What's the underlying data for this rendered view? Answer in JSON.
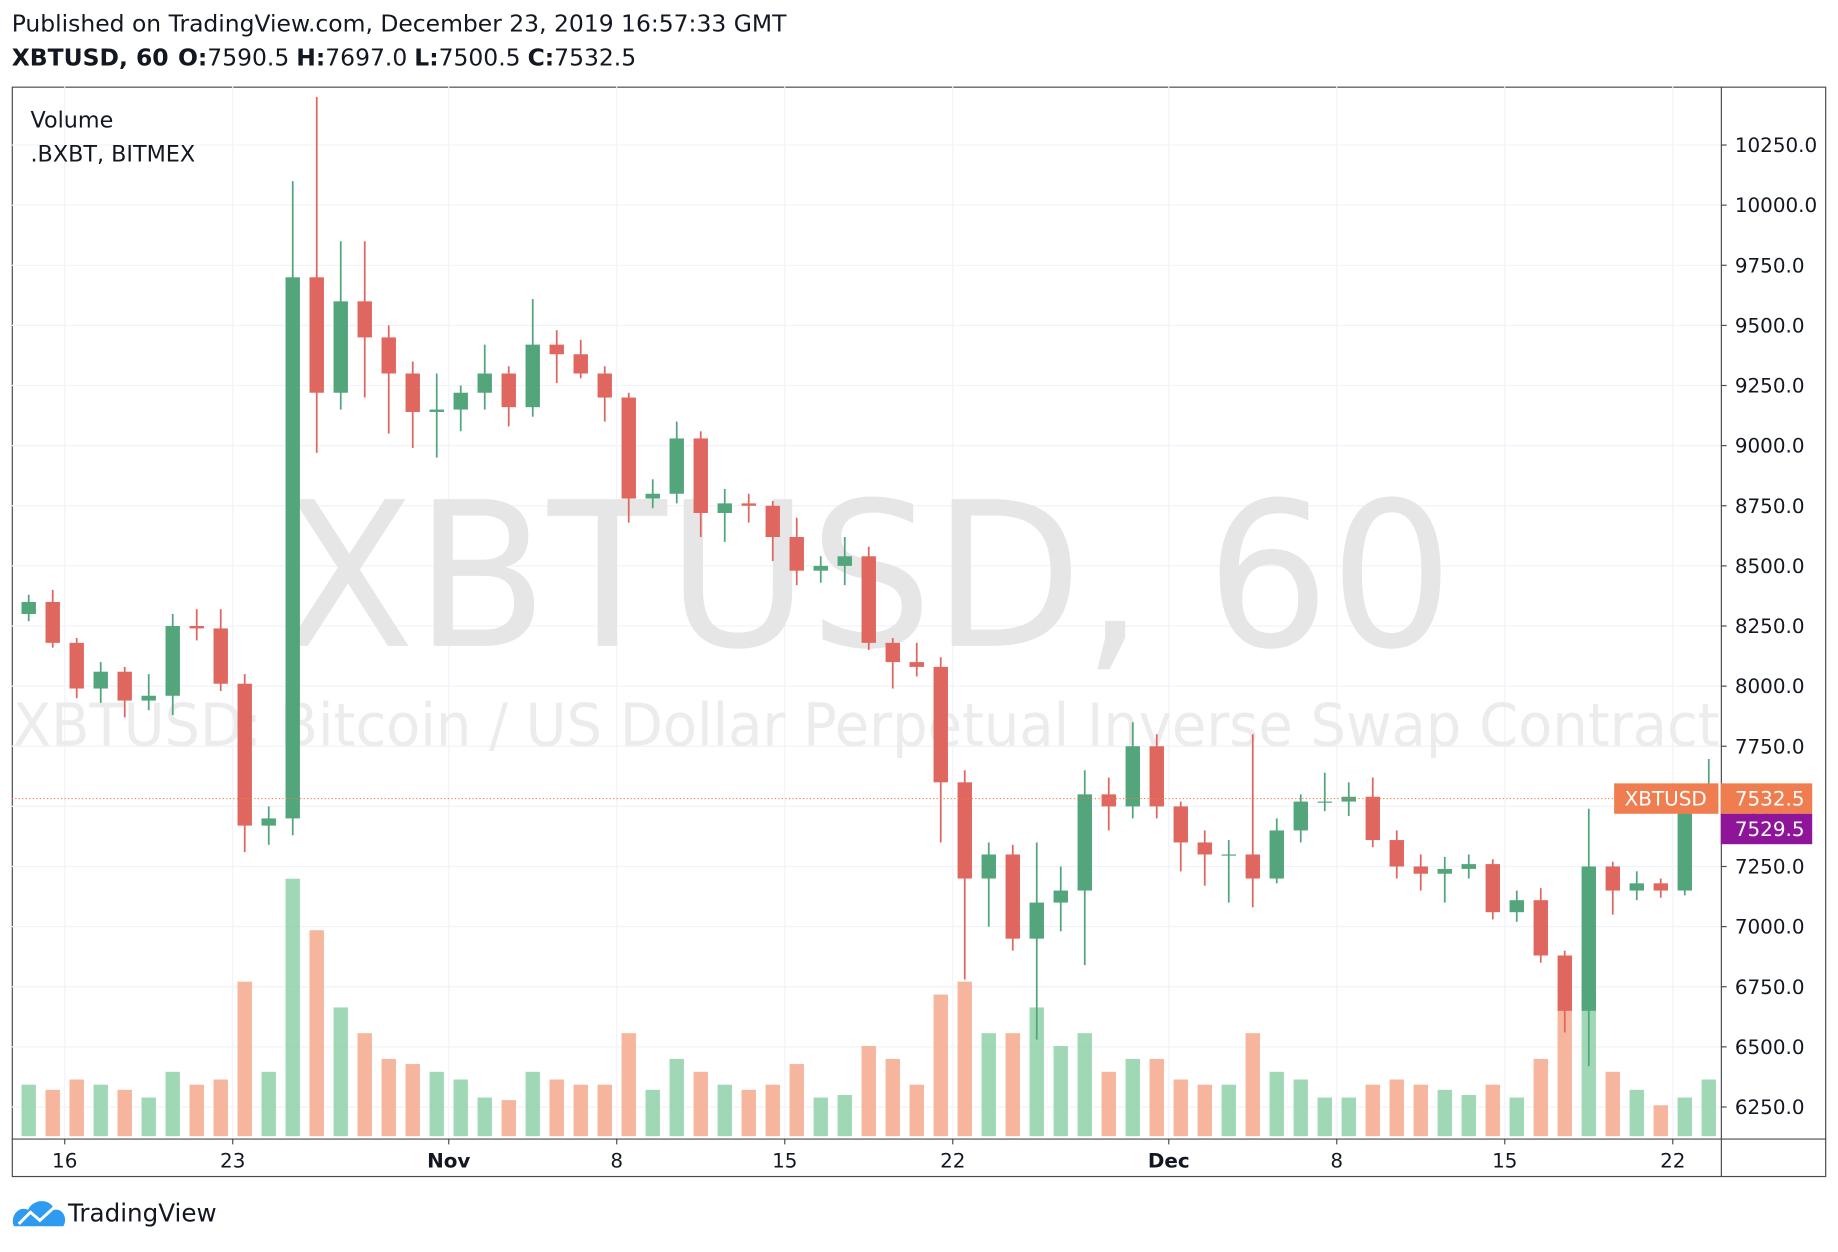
{
  "header": {
    "published": "Published on TradingView.com, December 23, 2019 16:57:33 GMT",
    "symbol": "XBTUSD, 60",
    "ohlc": [
      {
        "key": "O:",
        "value": "7590.5"
      },
      {
        "key": "H:",
        "value": "7697.0"
      },
      {
        "key": "L:",
        "value": "7500.5"
      },
      {
        "key": "C:",
        "value": "7532.5"
      }
    ]
  },
  "chart_data": {
    "type": "candlestick",
    "watermark": "XBTUSD, 60",
    "watermark_subtitle": "XBTUSD: Bitcoin / US Dollar Perpetual Inverse Swap Contract",
    "indicators": [
      "Volume",
      ".BXBT, BITMEX"
    ],
    "x": [
      "2019-10-14",
      "2019-10-15",
      "2019-10-16",
      "2019-10-17",
      "2019-10-18",
      "2019-10-19",
      "2019-10-20",
      "2019-10-21",
      "2019-10-22",
      "2019-10-23",
      "2019-10-24",
      "2019-10-25",
      "2019-10-26",
      "2019-10-27",
      "2019-10-28",
      "2019-10-29",
      "2019-10-30",
      "2019-10-31",
      "2019-11-01",
      "2019-11-02",
      "2019-11-03",
      "2019-11-04",
      "2019-11-05",
      "2019-11-06",
      "2019-11-07",
      "2019-11-08",
      "2019-11-09",
      "2019-11-10",
      "2019-11-11",
      "2019-11-12",
      "2019-11-13",
      "2019-11-14",
      "2019-11-15",
      "2019-11-16",
      "2019-11-17",
      "2019-11-18",
      "2019-11-19",
      "2019-11-20",
      "2019-11-21",
      "2019-11-22",
      "2019-11-23",
      "2019-11-24",
      "2019-11-25",
      "2019-11-26",
      "2019-11-27",
      "2019-11-28",
      "2019-11-29",
      "2019-11-30",
      "2019-12-01",
      "2019-12-02",
      "2019-12-03",
      "2019-12-04",
      "2019-12-05",
      "2019-12-06",
      "2019-12-07",
      "2019-12-08",
      "2019-12-09",
      "2019-12-10",
      "2019-12-11",
      "2019-12-12",
      "2019-12-13",
      "2019-12-14",
      "2019-12-15",
      "2019-12-16",
      "2019-12-17",
      "2019-12-18",
      "2019-12-19",
      "2019-12-20",
      "2019-12-21",
      "2019-12-22",
      "2019-12-23"
    ],
    "open": [
      8300,
      8350,
      8180,
      7990,
      8060,
      7940,
      7960,
      8250,
      8240,
      8010,
      7420,
      7450,
      9700,
      9220,
      9600,
      9450,
      9300,
      9140,
      9150,
      9220,
      9300,
      9160,
      9420,
      9380,
      9300,
      9200,
      8780,
      8800,
      9030,
      8720,
      8760,
      8750,
      8620,
      8480,
      8500,
      8540,
      8180,
      8100,
      8080,
      7600,
      7200,
      7300,
      6950,
      7100,
      7150,
      7550,
      7500,
      7750,
      7500,
      7350,
      7300,
      7300,
      7200,
      7400,
      7520,
      7520,
      7540,
      7360,
      7250,
      7220,
      7240,
      7260,
      7060,
      7110,
      6880,
      6650,
      7250,
      7150,
      7180,
      7150,
      7500
    ],
    "high": [
      8380,
      8400,
      8200,
      8100,
      8080,
      8050,
      8300,
      8320,
      8320,
      8050,
      7500,
      10100,
      10450,
      9850,
      9850,
      9500,
      9350,
      9300,
      9250,
      9420,
      9330,
      9610,
      9480,
      9440,
      9330,
      9220,
      8860,
      9100,
      9060,
      8820,
      8800,
      8770,
      8700,
      8540,
      8620,
      8580,
      8200,
      8180,
      8120,
      7650,
      7350,
      7340,
      7350,
      7250,
      7650,
      7620,
      7850,
      7800,
      7520,
      7400,
      7360,
      7800,
      7450,
      7550,
      7640,
      7600,
      7620,
      7400,
      7300,
      7290,
      7300,
      7280,
      7150,
      7160,
      6900,
      7490,
      7270,
      7230,
      7200,
      7520,
      7697
    ],
    "low": [
      8270,
      8160,
      7950,
      7930,
      7870,
      7900,
      7880,
      8190,
      7980,
      7310,
      7340,
      7380,
      8970,
      9150,
      9200,
      9050,
      8990,
      8950,
      9060,
      9150,
      9080,
      9120,
      9260,
      9280,
      9100,
      8680,
      8740,
      8760,
      8620,
      8600,
      8680,
      8520,
      8420,
      8430,
      8420,
      8150,
      7990,
      8040,
      7350,
      6780,
      7000,
      6900,
      6530,
      6980,
      6840,
      7400,
      7450,
      7450,
      7230,
      7170,
      7100,
      7080,
      7180,
      7350,
      7480,
      7460,
      7330,
      7200,
      7150,
      7100,
      7200,
      7030,
      7020,
      6850,
      6560,
      6420,
      7050,
      7110,
      7120,
      7130,
      7470
    ],
    "close": [
      8350,
      8180,
      7990,
      8060,
      7940,
      7960,
      8250,
      8240,
      8010,
      7420,
      7450,
      9700,
      9220,
      9600,
      9450,
      9300,
      9140,
      9150,
      9220,
      9300,
      9160,
      9420,
      9380,
      9300,
      9200,
      8780,
      8800,
      9030,
      8720,
      8760,
      8750,
      8620,
      8480,
      8500,
      8540,
      8180,
      8100,
      8080,
      7600,
      7200,
      7300,
      6950,
      7100,
      7150,
      7550,
      7500,
      7750,
      7500,
      7350,
      7300,
      7300,
      7200,
      7400,
      7520,
      7520,
      7540,
      7360,
      7250,
      7220,
      7240,
      7260,
      7060,
      7110,
      6880,
      6650,
      7250,
      7150,
      7180,
      7150,
      7500,
      7532.5
    ],
    "volume": [
      20,
      18,
      22,
      20,
      18,
      15,
      25,
      20,
      22,
      60,
      25,
      100,
      80,
      50,
      40,
      30,
      28,
      25,
      22,
      15,
      14,
      25,
      22,
      20,
      20,
      40,
      18,
      30,
      25,
      20,
      18,
      20,
      28,
      15,
      16,
      35,
      30,
      20,
      55,
      60,
      40,
      40,
      50,
      35,
      40,
      25,
      30,
      30,
      22,
      20,
      20,
      40,
      25,
      22,
      15,
      15,
      20,
      22,
      20,
      18,
      16,
      20,
      15,
      30,
      50,
      55,
      25,
      18,
      12,
      15,
      22
    ],
    "up_color": "#53a57c",
    "down_color": "#e0675f",
    "volume_up_color": "#8fd0a8",
    "volume_down_color": "#f5a88c",
    "xlim": [
      "2019-10-13T19:00Z",
      "2019-12-24T00:00Z"
    ],
    "xticks": [
      {
        "value": "2019-10-16",
        "label": "16"
      },
      {
        "value": "2019-10-23",
        "label": "23"
      },
      {
        "value": "2019-11-01",
        "label": "Nov"
      },
      {
        "value": "2019-11-08",
        "label": "8"
      },
      {
        "value": "2019-11-15",
        "label": "15"
      },
      {
        "value": "2019-11-22",
        "label": "22"
      },
      {
        "value": "2019-12-01",
        "label": "Dec"
      },
      {
        "value": "2019-12-08",
        "label": "8"
      },
      {
        "value": "2019-12-15",
        "label": "15"
      },
      {
        "value": "2019-12-22",
        "label": "22"
      }
    ],
    "ylim": [
      6119,
      10493
    ],
    "yticks": [
      {
        "value": 6250,
        "label": "6250.0"
      },
      {
        "value": 6500,
        "label": "6500.0"
      },
      {
        "value": 6750,
        "label": "6750.0"
      },
      {
        "value": 7000,
        "label": "7000.0"
      },
      {
        "value": 7250,
        "label": "7250.0"
      },
      {
        "value": 7500,
        "label": "7500.0"
      },
      {
        "value": 7750,
        "label": "7750.0"
      },
      {
        "value": 8000,
        "label": "8000.0"
      },
      {
        "value": 8250,
        "label": "8250.0"
      },
      {
        "value": 8500,
        "label": "8500.0"
      },
      {
        "value": 8750,
        "label": "8750.0"
      },
      {
        "value": 9000,
        "label": "9000.0"
      },
      {
        "value": 9250,
        "label": "9250.0"
      },
      {
        "value": 9500,
        "label": "9500.0"
      },
      {
        "value": 9750,
        "label": "9750.0"
      },
      {
        "value": 10000,
        "label": "10000.0"
      },
      {
        "value": 10250,
        "label": "10250.0"
      }
    ],
    "grid": true,
    "last_price": {
      "name": "XBTUSD",
      "value": 7532.5,
      "label": "7532.5",
      "color": "#f07d4f"
    },
    "index_price": {
      "value": 7529.5,
      "label": "7529.5",
      "color": "#8e1599"
    }
  },
  "footer": {
    "brand": "TradingView"
  }
}
